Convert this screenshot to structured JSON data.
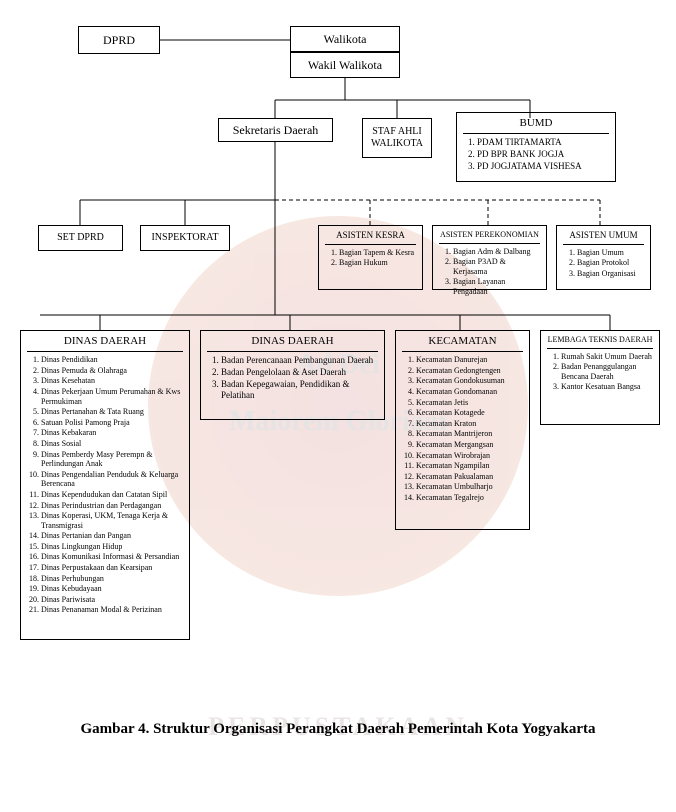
{
  "top": {
    "dprd": "DPRD",
    "walikota": "Walikota",
    "wakil": "Wakil Walikota",
    "sekda": "Sekretaris Daerah",
    "staf": "STAF AHLI WALIKOTA",
    "bumd_title": "BUMD",
    "bumd_items": [
      "PDAM TIRTAMARTA",
      "PD BPR BANK JOGJA",
      "PD JOGJATAMA VISHESA"
    ]
  },
  "row2": {
    "setdprd": "SET DPRD",
    "inspektorat": "INSPEKTORAT",
    "asisten_kesra_title": "ASISTEN KESRA",
    "asisten_kesra_items": [
      "Bagian Tapem & Kesra",
      "Bagian Hukum"
    ],
    "asisten_perekonomian_title": "ASISTEN PEREKONOMIAN",
    "asisten_perekonomian_items": [
      "Bagian Adm & Dalbang",
      "Bagian P3AD & Kerjasama",
      "Bagian Layanan Pengadaan"
    ],
    "asisten_umum_title": "ASISTEN UMUM",
    "asisten_umum_items": [
      "Bagian Umum",
      "Bagian Protokol",
      "Bagian Organisasi"
    ]
  },
  "dinas1": {
    "title": "DINAS DAERAH",
    "items": [
      "Dinas Pendidikan",
      "Dinas Pemuda & Olahraga",
      "Dinas Kesehatan",
      "Dinas Pekerjaan Umum Perumahan & Kws Permukiman",
      "Dinas Pertanahan & Tata Ruang",
      "Satuan Polisi Pamong Praja",
      "Dinas Kebakaran",
      "Dinas Sosial",
      "Dinas Pemberdy Masy Perempn & Perlindungan Anak",
      "Dinas Pengendalian Penduduk & Keluarga Berencana",
      "Dinas Kependudukan dan Catatan Sipil",
      "Dinas Perindustrian dan Perdagangan",
      "Dinas Koperasi, UKM, Tenaga Kerja & Transmigrasi",
      "Dinas Pertanian dan Pangan",
      "Dinas Lingkungan Hidup",
      "Dinas Komunikasi Informasi & Persandian",
      "Dinas Perpustakaan dan Kearsipan",
      "Dinas Perhubungan",
      "Dinas Kebudayaan",
      "Dinas Pariwisata",
      "Dinas Penanaman Modal & Perizinan"
    ]
  },
  "dinas2": {
    "title": "DINAS DAERAH",
    "items": [
      "Badan Perencanaan Pembangunan Daerah",
      "Badan Pengelolaan & Aset Daerah",
      "Badan Kepegawaian, Pendidikan & Pelatihan"
    ]
  },
  "kecamatan": {
    "title": "KECAMATAN",
    "items": [
      "Kecamatan Danurejan",
      "Kecamatan Gedongtengen",
      "Kecamatan Gondokusuman",
      "Kecamatan Gondomanan",
      "Kecamatan Jetis",
      "Kecamatan Kotagede",
      "Kecamatan Kraton",
      "Kecamatan Mantrijeron",
      "Kecamatan Mergangsan",
      "Kecamatan Wirobrajan",
      "Kecamatan Ngampilan",
      "Kecamatan Pakualaman",
      "Kecamatan Umbulharjo",
      "Kecamatan Tegalrejo"
    ]
  },
  "lembaga": {
    "title": "LEMBAGA TEKNIS DAERAH",
    "items": [
      "Rumah Sakit Umum Daerah",
      "Badan Penanggulangan Bencana Daerah",
      "Kantor Kesatuan Bangsa"
    ]
  },
  "caption": "Gambar 4. Struktur Organisasi Perangkat Daerah Pemerintah Kota Yogyakarta",
  "watermark": {
    "line1": "Ad   Dei",
    "line2": "Maiorem   Gloriam",
    "arc": "PERPUSTAKAAN"
  },
  "styling": {
    "type": "tree",
    "border_color": "#000000",
    "background_color": "#ffffff",
    "font_family": "Times New Roman",
    "title_fontsize": 11,
    "item_fontsize": 9,
    "caption_fontsize": 15,
    "line_color": "#000000",
    "dashed_pattern": "4 3",
    "watermark_color": "#b34040",
    "watermark_opacity": 0.15
  }
}
